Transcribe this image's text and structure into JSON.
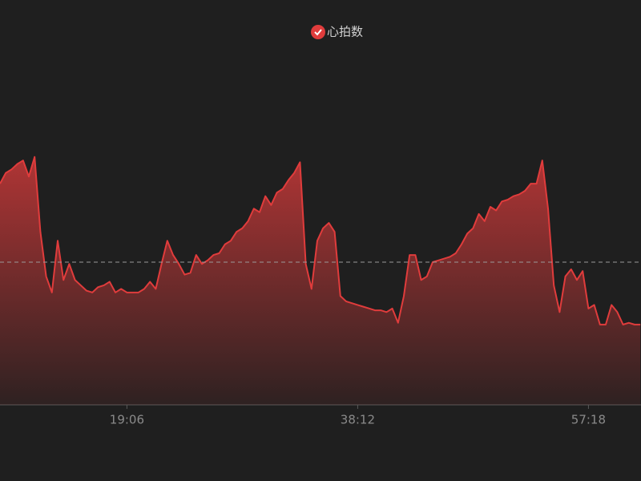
{
  "chart_data": {
    "type": "area",
    "categories": [
      null,
      null,
      null,
      null,
      null,
      null,
      null,
      null,
      null,
      null,
      null,
      null,
      null,
      null,
      null,
      null,
      null,
      null,
      null,
      null,
      null,
      null,
      "19:06",
      null,
      null,
      null,
      null,
      null,
      null,
      null,
      null,
      null,
      null,
      null,
      null,
      null,
      null,
      null,
      null,
      null,
      null,
      null,
      null,
      null,
      null,
      null,
      null,
      null,
      null,
      null,
      null,
      null,
      null,
      null,
      null,
      null,
      null,
      null,
      null,
      null,
      null,
      null,
      "38:12",
      null,
      null,
      null,
      null,
      null,
      null,
      null,
      null,
      null,
      null,
      null,
      null,
      null,
      null,
      null,
      null,
      null,
      null,
      null,
      null,
      null,
      null,
      null,
      null,
      null,
      null,
      null,
      null,
      null,
      null,
      null,
      null,
      null,
      null,
      null,
      null,
      null,
      null,
      null,
      "57:18",
      null,
      null,
      null,
      null,
      null,
      null,
      null,
      null,
      null
    ],
    "series": [
      {
        "name": "心拍数",
        "color": "#e03c3c",
        "values": [
          124,
          130,
          132,
          135,
          137,
          128,
          139,
          97,
          72,
          63,
          92,
          70,
          79,
          70,
          67,
          64,
          63,
          66,
          67,
          69,
          63,
          65,
          63,
          63,
          63,
          65,
          69,
          65,
          79,
          92,
          84,
          79,
          73,
          74,
          84,
          79,
          81,
          84,
          85,
          90,
          92,
          97,
          99,
          103,
          110,
          108,
          117,
          112,
          119,
          121,
          126,
          130,
          136,
          79,
          65,
          92,
          99,
          102,
          97,
          61,
          58,
          57,
          56,
          55,
          54,
          53,
          53,
          52,
          54,
          46,
          61,
          84,
          84,
          70,
          72,
          80,
          81,
          82,
          83,
          85,
          90,
          96,
          99,
          107,
          103,
          111,
          109,
          114,
          115,
          117,
          118,
          120,
          124,
          124,
          137,
          110,
          67,
          52,
          72,
          76,
          70,
          75,
          54,
          56,
          45,
          45,
          56,
          52,
          45,
          46,
          45,
          45
        ]
      }
    ],
    "ylim": [
      0,
      200
    ],
    "mark_line": 80,
    "legend": "top"
  }
}
